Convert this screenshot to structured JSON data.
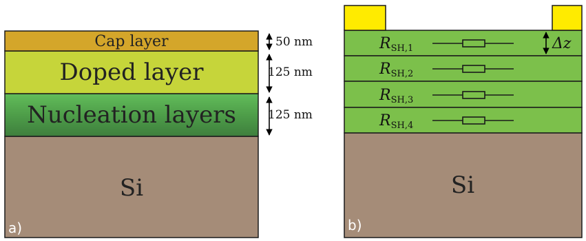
{
  "panel_a": {
    "label": "a)",
    "layers": {
      "cap": "Cap layer",
      "doped": "Doped layer",
      "nucleation": "Nucleation layers",
      "substrate": "Si"
    },
    "thickness": {
      "cap": "50 nm",
      "doped": "125 nm",
      "nucleation": "125 nm"
    }
  },
  "panel_b": {
    "label": "b)",
    "substrate": "Si",
    "sheet_resistances": [
      {
        "symbol": "R",
        "sub": "SH,1"
      },
      {
        "symbol": "R",
        "sub": "SH,2"
      },
      {
        "symbol": "R",
        "sub": "SH,3"
      },
      {
        "symbol": "R",
        "sub": "SH,4"
      }
    ],
    "delta_z": {
      "symbol": "Δz"
    }
  },
  "colors": {
    "cap": "#d4a62a",
    "doped": "#c6d53a",
    "nucleation_top": "#5fb757",
    "nucleation_bottom": "#3d7e3c",
    "green_layer": "#7cc04b",
    "substrate": "#a58c78",
    "contact": "#ffeb00"
  }
}
